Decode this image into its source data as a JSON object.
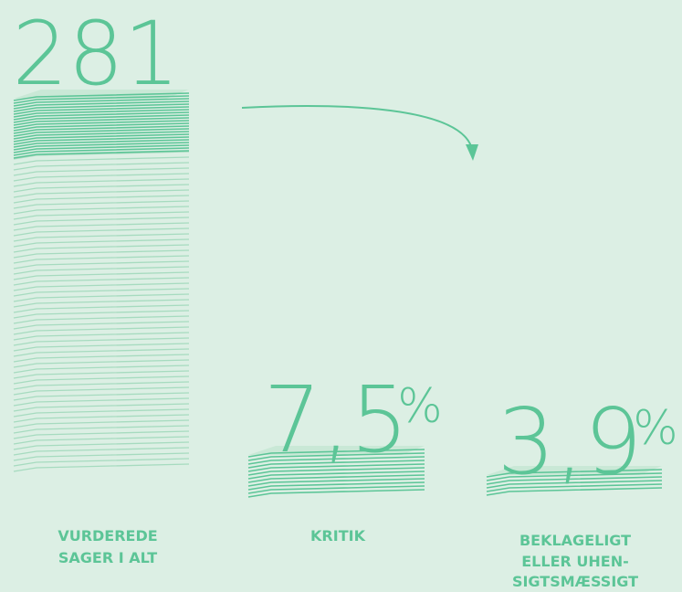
{
  "items": [
    {
      "figure": "281",
      "label_lines": [
        "VURDEREDE",
        "SAGER I ALT"
      ]
    },
    {
      "figure": "7,5",
      "unit": "%",
      "label_lines": [
        "KRITIK"
      ]
    },
    {
      "figure": "3,9",
      "unit": "%",
      "label_lines": [
        "BEKLAGELIGT",
        "ELLER UHEN-",
        "SIGTSMÆSSIGT"
      ]
    }
  ]
}
